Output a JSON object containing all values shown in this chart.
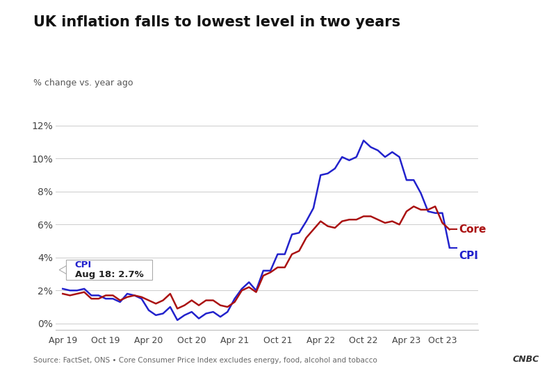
{
  "title": "UK inflation falls to lowest level in two years",
  "ylabel": "% change vs. year ago",
  "source": "Source: FactSet, ONS • Core Consumer Price Index excludes energy, food, alcohol and tobacco",
  "background_color": "#ffffff",
  "cpi_color": "#2222cc",
  "core_color": "#aa1111",
  "yticks": [
    0,
    2,
    4,
    6,
    8,
    10,
    12
  ],
  "ytick_labels": [
    "0%",
    "2%",
    "4%",
    "6%",
    "8%",
    "10%",
    "12%"
  ],
  "xtick_labels": [
    "Apr 19",
    "Oct 19",
    "Apr 20",
    "Oct 20",
    "Apr 21",
    "Oct 21",
    "Apr 22",
    "Oct 22",
    "Apr 23",
    "Oct 23"
  ],
  "ylim": [
    -0.4,
    12.8
  ],
  "cpi_label": "CPI",
  "core_label": "Core",
  "cpi_values": [
    2.1,
    2.0,
    2.0,
    2.1,
    1.7,
    1.7,
    1.5,
    1.5,
    1.3,
    1.8,
    1.7,
    1.5,
    0.8,
    0.5,
    0.6,
    1.0,
    0.2,
    0.5,
    0.7,
    0.3,
    0.6,
    0.7,
    0.4,
    0.7,
    1.5,
    2.1,
    2.5,
    2.0,
    3.2,
    3.2,
    4.2,
    4.2,
    5.4,
    5.5,
    6.2,
    7.0,
    9.0,
    9.1,
    9.4,
    10.1,
    9.9,
    10.1,
    11.1,
    10.7,
    10.5,
    10.1,
    10.4,
    10.1,
    8.7,
    8.7,
    7.9,
    6.8,
    6.7,
    6.7,
    4.6
  ],
  "core_values": [
    1.8,
    1.7,
    1.8,
    1.9,
    1.5,
    1.5,
    1.7,
    1.7,
    1.4,
    1.6,
    1.7,
    1.6,
    1.4,
    1.2,
    1.4,
    1.8,
    0.9,
    1.1,
    1.4,
    1.1,
    1.4,
    1.4,
    1.1,
    1.0,
    1.3,
    2.0,
    2.2,
    1.9,
    2.9,
    3.1,
    3.4,
    3.4,
    4.2,
    4.4,
    5.2,
    5.7,
    6.2,
    5.9,
    5.8,
    6.2,
    6.3,
    6.3,
    6.5,
    6.5,
    6.3,
    6.1,
    6.2,
    6.0,
    6.8,
    7.1,
    6.9,
    6.9,
    7.1,
    6.1,
    5.7
  ]
}
